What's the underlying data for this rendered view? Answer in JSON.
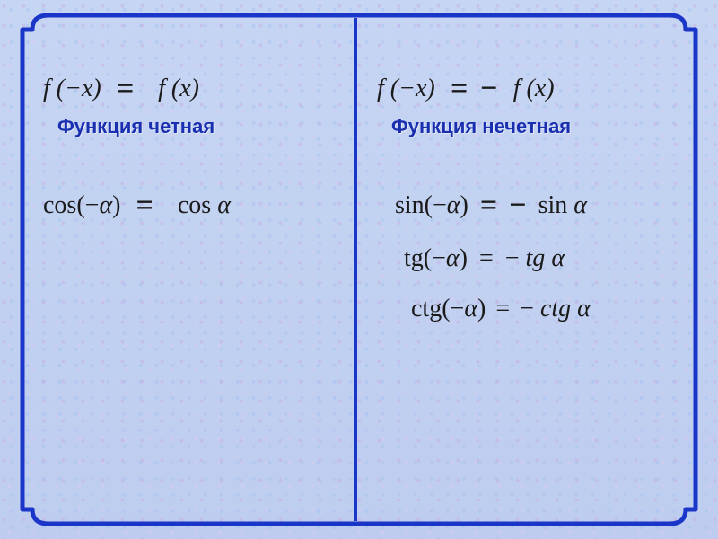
{
  "colors": {
    "frame": "#1a36c9",
    "divider": "#1a36c9",
    "label": "#1a2fb0",
    "text": "#1a1a1a",
    "bg_top": "#c5d5f2",
    "bg_bottom": "#becdef"
  },
  "left": {
    "definition": {
      "lhs": "f (−x)",
      "eq": "=",
      "rhs": "f (x)"
    },
    "label": "Функция четная",
    "rows": [
      {
        "lhs": "cos(−α)",
        "eq": "=",
        "rhs": "cos α"
      }
    ]
  },
  "right": {
    "definition": {
      "lhs": "f (−x)",
      "eq": "=",
      "neg": "−",
      "rhs": "f (x)"
    },
    "label": "Функция нечетная",
    "rows": [
      {
        "lhs": "sin(−α)",
        "eq": "=",
        "neg": "−",
        "rhs": "sin α"
      },
      {
        "lhs": "tg(−α)",
        "eq": "=",
        "neg": "−",
        "rhs": "tg α",
        "compact": true
      },
      {
        "lhs": "ctg(−α)",
        "eq": "=",
        "neg": "−",
        "rhs": "ctg α",
        "compact": true
      }
    ]
  },
  "frame": {
    "stroke_width": 5,
    "corner": 32
  }
}
